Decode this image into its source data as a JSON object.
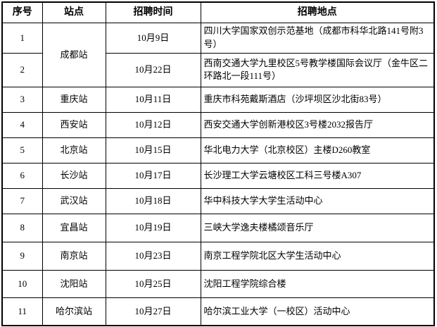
{
  "table": {
    "headers": {
      "seq": "序号",
      "station": "站点",
      "time": "招聘时间",
      "location": "招聘地点"
    },
    "rows": [
      {
        "seq": "1",
        "station": "成都站",
        "time": "10月9日",
        "location": "四川大学国家双创示范基地（成都市科华北路141号附3号）"
      },
      {
        "seq": "2",
        "station": "成都站",
        "time": "10月22日",
        "location": "西南交通大学九里校区5号教学楼国际会议厅（金牛区二环路北一段111号）"
      },
      {
        "seq": "3",
        "station": "重庆站",
        "time": "10月11日",
        "location": "重庆市科苑戴斯酒店（沙坪坝区沙北街83号）"
      },
      {
        "seq": "4",
        "station": "西安站",
        "time": "10月12日",
        "location": "西安交通大学创新港校区3号楼2032报告厅"
      },
      {
        "seq": "5",
        "station": "北京站",
        "time": "10月15日",
        "location": "华北电力大学（北京校区）主楼D260教室"
      },
      {
        "seq": "6",
        "station": "长沙站",
        "time": "10月17日",
        "location": "长沙理工大学云塘校区工科三号楼A307"
      },
      {
        "seq": "7",
        "station": "武汉站",
        "time": "10月18日",
        "location": "华中科技大学大学生活动中心"
      },
      {
        "seq": "8",
        "station": "宜昌站",
        "time": "10月19日",
        "location": "三峡大学逸夫楼橘颂音乐厅"
      },
      {
        "seq": "9",
        "station": "南京站",
        "time": "10月23日",
        "location": "南京工程学院北区大学生活动中心"
      },
      {
        "seq": "10",
        "station": "沈阳站",
        "time": "10月25日",
        "location": "沈阳工程学院综合楼"
      },
      {
        "seq": "11",
        "station": "哈尔滨站",
        "time": "10月27日",
        "location": "哈尔滨工业大学（一校区）活动中心"
      }
    ],
    "colors": {
      "border": "#000000",
      "text": "#000000",
      "background": "#ffffff"
    }
  }
}
